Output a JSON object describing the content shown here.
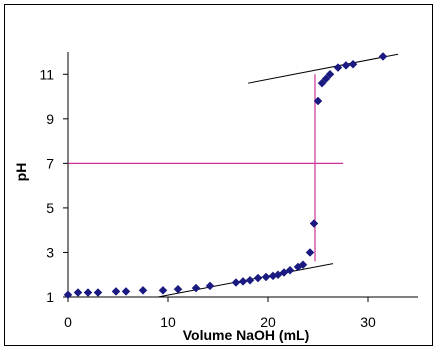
{
  "chart_data": {
    "type": "scatter",
    "title": "",
    "xlabel": "Volume NaOH (mL)",
    "ylabel": "pH",
    "xlim": [
      0,
      35
    ],
    "ylim": [
      1,
      12
    ],
    "x_ticks": [
      0,
      10,
      20,
      30
    ],
    "y_ticks": [
      1,
      3,
      5,
      7,
      9,
      11
    ],
    "grid": false,
    "legend": "none",
    "colors": {
      "points": "#1a1a80",
      "guide_lines": "#cc3399",
      "tangents": "#000000"
    },
    "series": [
      {
        "x": [
          0.0,
          1.0,
          2.0,
          3.0,
          4.8,
          5.8,
          7.5,
          9.5,
          11.0,
          12.8,
          14.2,
          16.8,
          17.5,
          18.2,
          19.0,
          19.8,
          20.5,
          21.0,
          21.6,
          22.2,
          23.0,
          23.5,
          24.2,
          24.6,
          25.0,
          25.4,
          25.8,
          26.2,
          27.0,
          27.8,
          28.5,
          31.5
        ],
        "y": [
          1.1,
          1.2,
          1.2,
          1.2,
          1.25,
          1.25,
          1.3,
          1.3,
          1.35,
          1.4,
          1.5,
          1.65,
          1.7,
          1.75,
          1.85,
          1.9,
          1.95,
          2.0,
          2.1,
          2.2,
          2.35,
          2.45,
          3.0,
          4.3,
          9.8,
          10.6,
          10.8,
          11.0,
          11.3,
          11.4,
          11.45,
          11.8
        ]
      }
    ],
    "reference_lines": [
      {
        "x1": 0,
        "y1": 7,
        "x2": 27.5,
        "y2": 7
      },
      {
        "x1": 24.7,
        "y1": 2.6,
        "x2": 24.7,
        "y2": 11.0
      }
    ],
    "tangent_lines": [
      {
        "x1": 9.0,
        "y1": 1.0,
        "x2": 26.5,
        "y2": 2.5
      },
      {
        "x1": 18.0,
        "y1": 10.6,
        "x2": 33.0,
        "y2": 11.9
      }
    ]
  }
}
